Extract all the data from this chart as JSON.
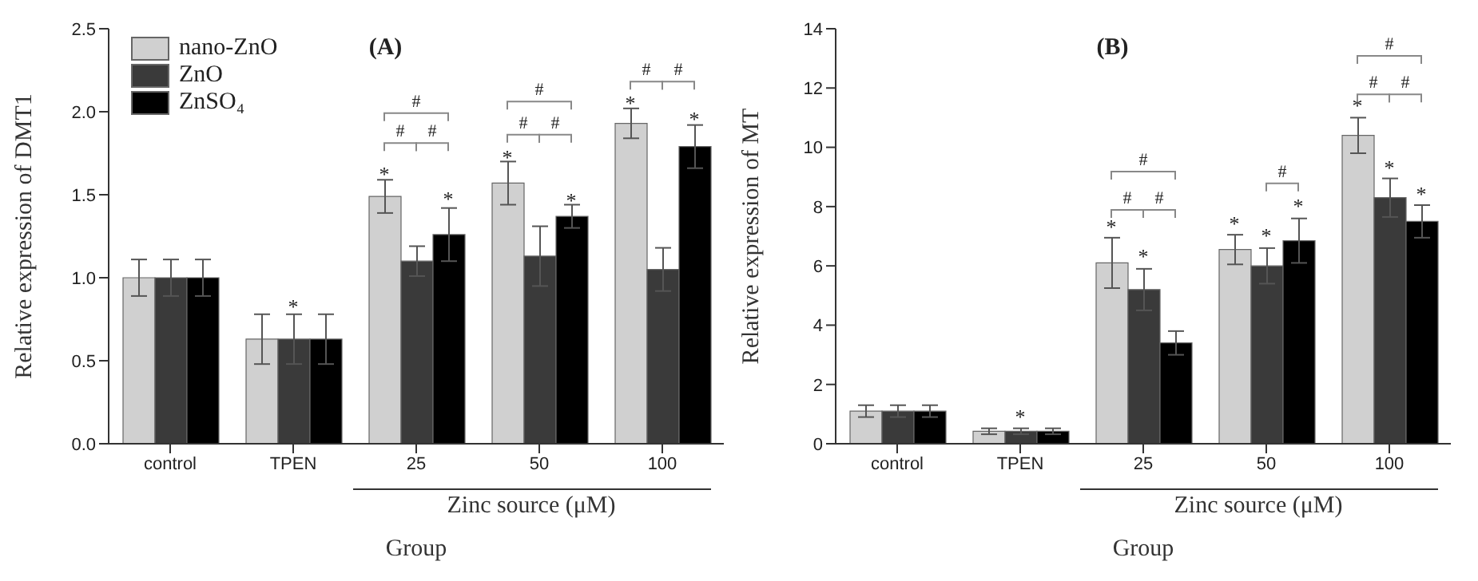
{
  "chart_data": [
    {
      "type": "bar",
      "title": "(A)",
      "xlabel": "Group",
      "ylabel": "Relative expression of DMT1",
      "categories": [
        "control",
        "TPEN",
        "25",
        "50",
        "100"
      ],
      "series": [
        {
          "name": "nano-ZnO",
          "color": "#d0d0d0",
          "values": [
            1.0,
            0.63,
            1.49,
            1.57,
            1.93
          ],
          "errors": [
            0.11,
            0.15,
            0.1,
            0.13,
            0.09
          ]
        },
        {
          "name": "ZnO",
          "color": "#3a3a3a",
          "values": [
            1.0,
            0.63,
            1.1,
            1.13,
            1.05
          ],
          "errors": [
            0.11,
            0.15,
            0.09,
            0.18,
            0.13
          ]
        },
        {
          "name": "ZnSO₄",
          "color": "#000000",
          "values": [
            1.0,
            0.63,
            1.26,
            1.37,
            1.79
          ],
          "errors": [
            0.11,
            0.15,
            0.16,
            0.07,
            0.13
          ]
        }
      ],
      "ylim": [
        0,
        2.5
      ],
      "yticks": [
        {
          "value": 0,
          "label": "0.0"
        },
        {
          "value": 0.5,
          "label": "0.5"
        },
        {
          "value": 1,
          "label": "1.0"
        },
        {
          "value": 1.5,
          "label": "1.5"
        },
        {
          "value": 2,
          "label": "2.0"
        },
        {
          "value": 2.5,
          "label": "2.5"
        }
      ],
      "grid": false,
      "legend": "top left",
      "annotations": [
        "Zinc source (μM)",
        "*",
        "*",
        "*",
        "*",
        "*",
        "*",
        "*",
        "#",
        "#",
        "#",
        "#",
        "#",
        "#",
        "#",
        "#"
      ]
    },
    {
      "type": "bar",
      "title": "(B)",
      "xlabel": "Group",
      "ylabel": "Relative expression of MT",
      "categories": [
        "control",
        "TPEN",
        "25",
        "50",
        "100"
      ],
      "series": [
        {
          "color": "#d0d0d0",
          "values": [
            1.1,
            0.42,
            6.1,
            6.55,
            10.4
          ],
          "errors": [
            0.2,
            0.1,
            0.85,
            0.5,
            0.6
          ]
        },
        {
          "color": "#3a3a3a",
          "values": [
            1.1,
            0.42,
            5.2,
            6.0,
            8.3
          ],
          "errors": [
            0.2,
            0.1,
            0.7,
            0.6,
            0.65
          ]
        },
        {
          "color": "#000000",
          "values": [
            1.1,
            0.42,
            3.4,
            6.85,
            7.5
          ],
          "errors": [
            0.2,
            0.1,
            0.4,
            0.75,
            0.55
          ]
        }
      ],
      "ylim": [
        0,
        14
      ],
      "yticks": [
        0,
        2,
        4,
        6,
        8,
        10,
        12,
        14
      ],
      "grid": false,
      "legend": false,
      "annotations": [
        "Zinc source (μM)",
        "*",
        "*",
        "*",
        "*",
        "*",
        "*",
        "*",
        "*",
        "*",
        "#",
        "#",
        "#",
        "#",
        "#",
        "#",
        "#"
      ]
    }
  ]
}
